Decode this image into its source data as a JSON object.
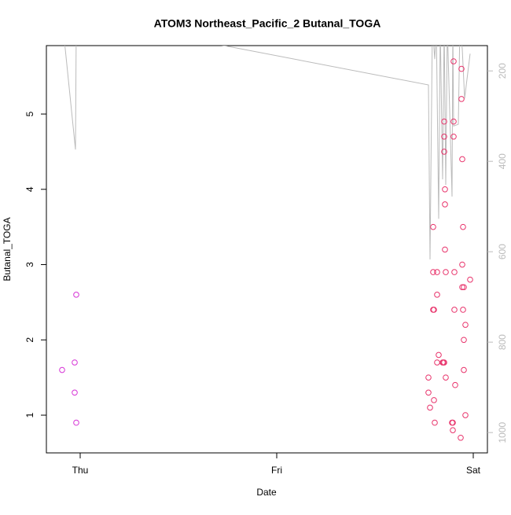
{
  "chart_data": {
    "type": "scatter",
    "title": "ATOM3 Northeast_Pacific_2 Butanal_TOGA",
    "x_label": "Date",
    "y_label": "Butanal_TOGA",
    "xlim": [
      -0.172,
      2.072
    ],
    "ylim": [
      0.499,
      5.909
    ],
    "y2lim": [
      1045,
      144
    ],
    "xticks": [
      {
        "value": 0,
        "label": "Thu"
      },
      {
        "value": 1,
        "label": "Fri"
      },
      {
        "value": 2,
        "label": "Sat"
      }
    ],
    "yticks": [
      1,
      2,
      3,
      4,
      5
    ],
    "y2ticks": [
      200,
      400,
      600,
      800,
      1000
    ],
    "y2_color": "#bbbbbb",
    "series": [
      {
        "color": "#d633d6",
        "x": [
          -0.092,
          -0.028,
          -0.028,
          -0.02,
          -0.02
        ],
        "values": [
          1.6,
          1.7,
          1.3,
          2.6,
          0.9
        ]
      },
      {
        "color": "#e8336b",
        "x": [
          1.772,
          1.772,
          1.78,
          1.8,
          1.804,
          1.796,
          1.796,
          1.816,
          1.796,
          1.8,
          1.816,
          1.824,
          1.816,
          1.844,
          1.852,
          1.848,
          1.86,
          1.852,
          1.852,
          1.852,
          1.856,
          1.856,
          1.856,
          1.86,
          1.9,
          1.9,
          1.9,
          1.904,
          1.904,
          1.908,
          1.892,
          1.896,
          1.896,
          1.94,
          1.94,
          1.944,
          1.948,
          1.944,
          1.944,
          1.952,
          1.948,
          1.952,
          1.96,
          1.952,
          1.96,
          1.936,
          1.984
        ],
        "values": [
          1.5,
          1.3,
          1.1,
          1.2,
          0.9,
          3.5,
          2.9,
          2.9,
          2.4,
          2.4,
          2.6,
          1.8,
          1.7,
          1.7,
          1.7,
          1.7,
          1.5,
          4.9,
          4.7,
          4.5,
          4.0,
          3.8,
          3.2,
          2.9,
          5.7,
          4.9,
          4.7,
          2.9,
          2.4,
          1.4,
          0.9,
          0.9,
          0.8,
          5.6,
          5.2,
          4.4,
          3.5,
          3.0,
          2.7,
          2.7,
          2.4,
          2.0,
          2.2,
          1.6,
          1.0,
          0.7,
          2.8
        ]
      },
      {
        "type": "line",
        "axis": "y2",
        "color": "#bbbbbb",
        "x": [
          -0.088,
          -0.024,
          -0.02,
          0.732,
          1.772,
          1.78,
          1.792,
          1.804,
          1.812,
          1.824,
          1.832,
          1.844,
          1.852,
          1.86,
          1.868,
          1.892,
          1.896,
          1.9,
          1.924,
          1.932,
          1.944,
          1.956,
          1.984
        ],
        "values": [
          100,
          374,
          100,
          144,
          231,
          617,
          100,
          174,
          100,
          527,
          100,
          440,
          100,
          452,
          100,
          478,
          100,
          322,
          318,
          100,
          151,
          261,
          162
        ]
      }
    ]
  }
}
